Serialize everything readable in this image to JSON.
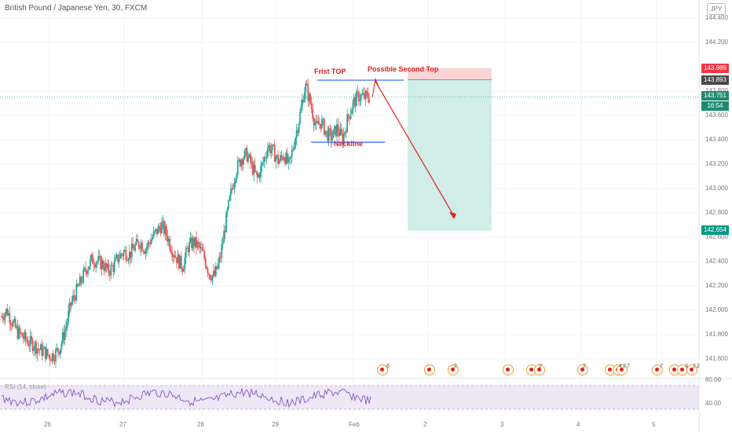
{
  "header": {
    "symbol_title": "British Pound / Japanese Yen, 30, FXCM",
    "currency": "JPY"
  },
  "price_tags": {
    "stop": {
      "value": "143.989",
      "color": "#f23645"
    },
    "entry": {
      "value": "143.893",
      "color": "#4a4a4a"
    },
    "last": {
      "value": "143.751",
      "color": "#1f8a70"
    },
    "countdown": {
      "value": "16:54",
      "color": "#1f8a70"
    },
    "target": {
      "value": "142.654",
      "color": "#089981"
    }
  },
  "annotations": {
    "first_top": "Frist TOP",
    "second_top": "Possible Second Top",
    "neckline": "Neckline"
  },
  "rsi": {
    "label": "RSI (14, close)",
    "upper": "80.00",
    "lower": "40.00"
  },
  "event_counts": [
    "6",
    "2",
    "2",
    "2",
    "4",
    "2",
    "7",
    "7",
    "3",
    "2",
    "2"
  ],
  "colors": {
    "up": "#26a69a",
    "down": "#ef5350",
    "rsi_line": "#7e57c2",
    "rsi_band": "#ede7f6",
    "profit_zone": "#d0ede8",
    "loss_zone": "#fbd5d5",
    "annotation": "#e0201b",
    "level_line": "#2962ff"
  },
  "chart_data": {
    "type": "candlestick",
    "title": "British Pound / Japanese Yen, 30, FXCM",
    "y_ticks": [
      "144.400",
      "144.200",
      "143.800",
      "143.600",
      "143.400",
      "143.200",
      "143.000",
      "142.800",
      "142.600",
      "142.400",
      "142.200",
      "142.000",
      "141.800",
      "141.600"
    ],
    "ylim": [
      141.55,
      144.45
    ],
    "x_ticks": [
      "26",
      "27",
      "28",
      "29",
      "Feb",
      "2",
      "3",
      "4",
      "5"
    ],
    "close_path": [
      141.95,
      142.0,
      141.9,
      141.82,
      141.78,
      141.74,
      141.72,
      141.68,
      141.66,
      141.62,
      141.64,
      141.7,
      141.85,
      142.05,
      142.15,
      142.25,
      142.35,
      142.42,
      142.4,
      142.38,
      142.32,
      142.36,
      142.44,
      142.48,
      142.46,
      142.52,
      142.56,
      142.5,
      142.58,
      142.64,
      142.7,
      142.62,
      142.5,
      142.42,
      142.36,
      142.52,
      142.56,
      142.52,
      142.44,
      142.3,
      142.28,
      142.42,
      142.7,
      142.95,
      143.15,
      143.25,
      143.28,
      143.18,
      143.08,
      143.2,
      143.35,
      143.3,
      143.22,
      143.28,
      143.18,
      143.4,
      143.6,
      143.85,
      143.7,
      143.5,
      143.55,
      143.45,
      143.42,
      143.5,
      143.4,
      143.58,
      143.7,
      143.76,
      143.75,
      143.75
    ],
    "first_top": 143.89,
    "neckline": 143.38,
    "entry": 143.893,
    "stop": 143.989,
    "target": 142.654,
    "last_price": 143.751,
    "rsi_levels": [
      80,
      40
    ]
  }
}
